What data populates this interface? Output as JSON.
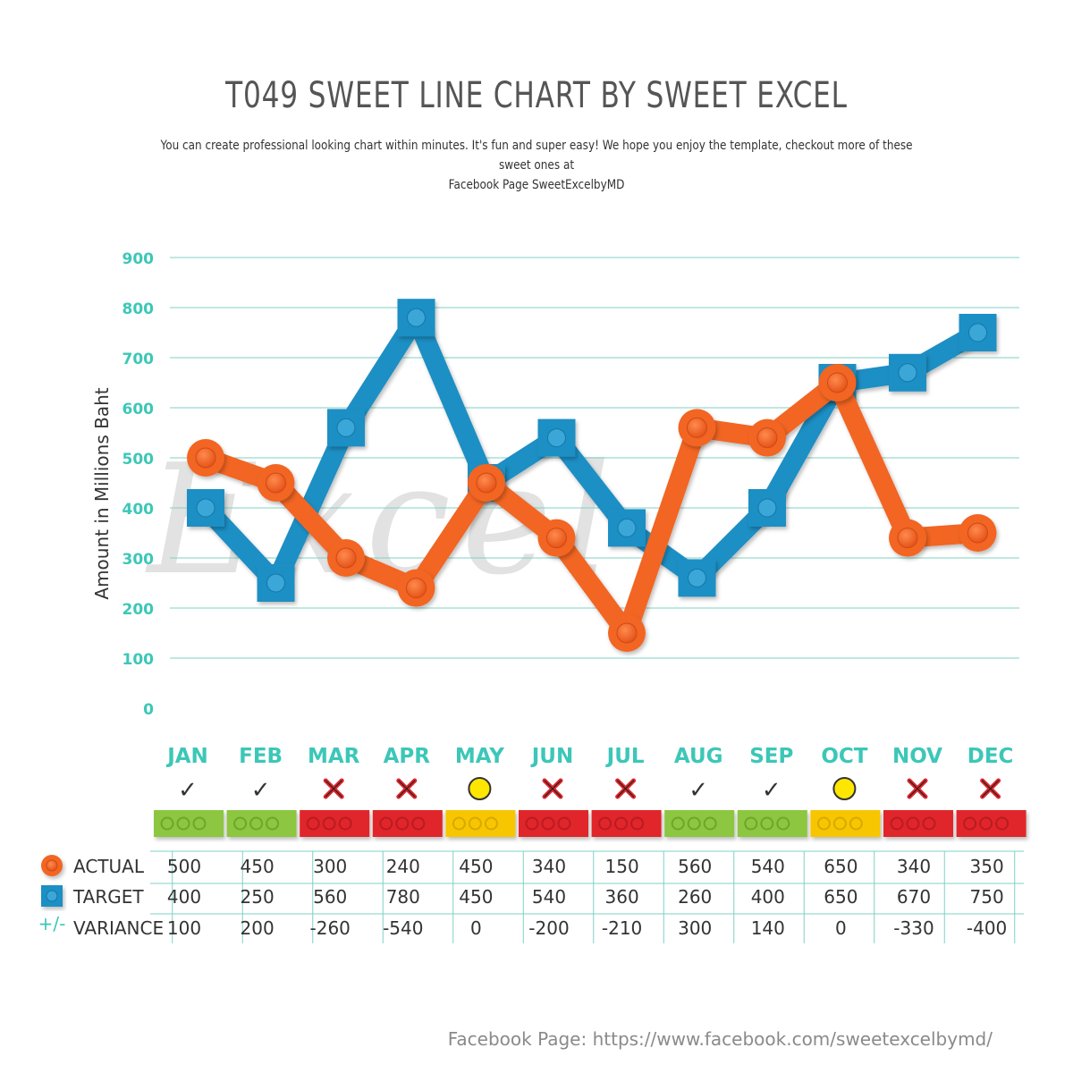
{
  "title": "T049 SWEET LINE CHART BY SWEET EXCEL",
  "subtitle_lines": [
    "You can create professional looking chart within minutes. It's fun and super easy! We hope you enjoy the template, checkout more of these sweet ones at",
    "Facebook Page SweetExcelbyMD"
  ],
  "footer": "Facebook Page: https://www.facebook.com/sweetexcelbymd/",
  "watermark": "Excel",
  "colors": {
    "actual": "#f26522",
    "target": "#1f8fc4",
    "grid": "#7fd1c4",
    "axis_text": "#3cc7b8",
    "good": "#8dc63f",
    "neutral": "#f7c600",
    "bad": "#e0262c"
  },
  "legend": {
    "actual": "ACTUAL",
    "target": "TARGET",
    "variance": "VARIANCE",
    "variance_symbol": "+/-"
  },
  "status_icons": {
    "good": "check-icon",
    "neutral": "yellow-dot-icon",
    "bad": "x-icon"
  },
  "chart_data": {
    "type": "line",
    "ylabel": "Amount in Millions Baht",
    "ylim": [
      0,
      900
    ],
    "yticks": [
      0,
      100,
      200,
      300,
      400,
      500,
      600,
      700,
      800,
      900
    ],
    "grid": true,
    "categories": [
      "JAN",
      "FEB",
      "MAR",
      "APR",
      "MAY",
      "JUN",
      "JUL",
      "AUG",
      "SEP",
      "OCT",
      "NOV",
      "DEC"
    ],
    "series": [
      {
        "name": "ACTUAL",
        "values": [
          500,
          450,
          300,
          240,
          450,
          340,
          150,
          560,
          540,
          650,
          340,
          350
        ]
      },
      {
        "name": "TARGET",
        "values": [
          400,
          250,
          560,
          780,
          450,
          540,
          360,
          260,
          400,
          650,
          670,
          750
        ]
      }
    ],
    "variance": [
      "100",
      "200",
      "-260",
      "-540",
      "0",
      "-200",
      "-210",
      "300",
      "140",
      "0",
      "-330",
      "-400"
    ],
    "status": [
      "good",
      "good",
      "bad",
      "bad",
      "neutral",
      "bad",
      "bad",
      "good",
      "good",
      "neutral",
      "bad",
      "bad"
    ]
  }
}
